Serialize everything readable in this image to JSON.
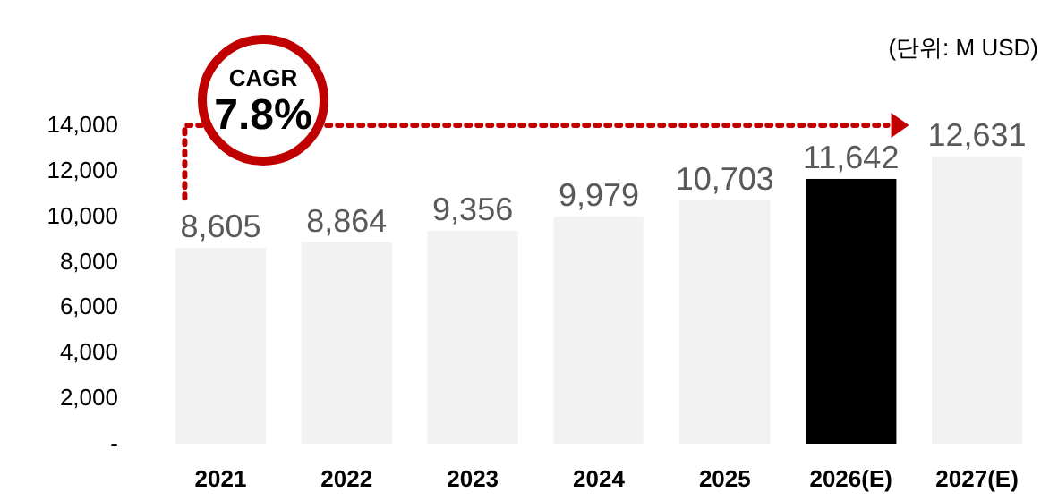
{
  "chart_data": {
    "type": "bar",
    "categories": [
      "2021",
      "2022",
      "2023",
      "2024",
      "2025",
      "2026(E)",
      "2027(E)"
    ],
    "values": [
      8605,
      8864,
      9356,
      9979,
      10703,
      11642,
      12631
    ],
    "colors": [
      "#f2f2f2",
      "#f2f2f2",
      "#f2f2f2",
      "#f2f2f2",
      "#f2f2f2",
      "#000000",
      "#f2f2f2"
    ],
    "value_labels": [
      "8,605",
      "8,864",
      "9,356",
      "9,979",
      "10,703",
      "11,642",
      "12,631"
    ],
    "ylim": [
      0,
      14000
    ],
    "yticks": [
      {
        "value": 0,
        "label": "-"
      },
      {
        "value": 2000,
        "label": "2,000"
      },
      {
        "value": 4000,
        "label": "4,000"
      },
      {
        "value": 6000,
        "label": "6,000"
      },
      {
        "value": 8000,
        "label": "8,000"
      },
      {
        "value": 10000,
        "label": "10,000"
      },
      {
        "value": 12000,
        "label": "12,000"
      },
      {
        "value": 14000,
        "label": "14,000"
      }
    ],
    "grid": false,
    "annotations": [
      "(단위: M USD)",
      "CAGR",
      "7.8%"
    ]
  }
}
